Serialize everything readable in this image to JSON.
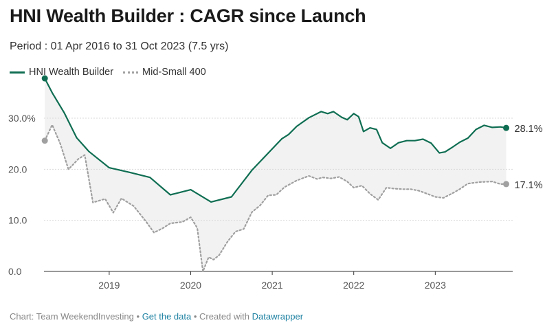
{
  "title": "HNI Wealth Builder : CAGR since Launch",
  "subtitle": "Period : 01 Apr 2016 to 31 Oct 2023 (7.5 yrs)",
  "footer": {
    "chart_by": "Chart: Team WeekendInvesting",
    "sep1": " • ",
    "get_data": "Get the data",
    "sep2": " • Created with ",
    "datawrapper": "Datawrapper"
  },
  "colors": {
    "hni": "#0f6e52",
    "mid": "#a0a0a0",
    "band": "#f2f2f2",
    "grid": "#d9d9d9",
    "axis": "#333333"
  },
  "chart_data": {
    "type": "line",
    "title": "HNI Wealth Builder : CAGR since Launch",
    "subtitle": "Period : 01 Apr 2016 to 31 Oct 2023 (7.5 yrs)",
    "xlabel": "",
    "ylabel": "",
    "xlim": [
      2018.2,
      2023.95
    ],
    "ylim": [
      0,
      37
    ],
    "y_ticks": [
      0,
      10,
      20,
      30
    ],
    "y_tick_labels": [
      "0.0",
      "10.0",
      "20.0",
      "30.0%"
    ],
    "x_ticks": [
      2019,
      2020,
      2021,
      2022,
      2023
    ],
    "x_tick_labels": [
      "2019",
      "2020",
      "2021",
      "2022",
      "2023"
    ],
    "grid": true,
    "legend": "top-left",
    "series": [
      {
        "name": "HNI Wealth Builder",
        "style": "solid",
        "end_label": "28.1%",
        "x": [
          2018.21,
          2018.3,
          2018.45,
          2018.6,
          2018.75,
          2019.0,
          2019.25,
          2019.5,
          2019.75,
          2020.0,
          2020.25,
          2020.5,
          2020.75,
          2021.0,
          2021.12,
          2021.2,
          2021.3,
          2021.45,
          2021.6,
          2021.68,
          2021.75,
          2021.85,
          2021.92,
          2022.0,
          2022.06,
          2022.12,
          2022.2,
          2022.28,
          2022.35,
          2022.45,
          2022.55,
          2022.65,
          2022.75,
          2022.85,
          2022.95,
          2023.05,
          2023.12,
          2023.2,
          2023.3,
          2023.4,
          2023.5,
          2023.6,
          2023.7,
          2023.8,
          2023.87
        ],
        "values": [
          37.8,
          35.0,
          31.0,
          26.2,
          23.5,
          20.3,
          19.4,
          18.4,
          15.0,
          16.0,
          13.6,
          14.6,
          19.8,
          24.0,
          26.0,
          26.8,
          28.4,
          30.1,
          31.3,
          30.9,
          31.3,
          30.2,
          29.7,
          30.9,
          30.3,
          27.4,
          28.1,
          27.8,
          25.2,
          24.1,
          25.2,
          25.6,
          25.6,
          25.9,
          25.1,
          23.2,
          23.4,
          24.2,
          25.3,
          26.1,
          27.8,
          28.6,
          28.2,
          28.3,
          28.1
        ]
      },
      {
        "name": "Mid-Small 400",
        "style": "dotted",
        "end_label": "17.1%",
        "x": [
          2018.21,
          2018.3,
          2018.4,
          2018.5,
          2018.55,
          2018.62,
          2018.7,
          2018.8,
          2018.95,
          2019.05,
          2019.15,
          2019.3,
          2019.45,
          2019.55,
          2019.65,
          2019.75,
          2019.9,
          2020.0,
          2020.08,
          2020.15,
          2020.22,
          2020.28,
          2020.35,
          2020.45,
          2020.55,
          2020.65,
          2020.75,
          2020.85,
          2020.95,
          2021.05,
          2021.15,
          2021.3,
          2021.45,
          2021.55,
          2021.62,
          2021.72,
          2021.82,
          2021.92,
          2022.0,
          2022.1,
          2022.2,
          2022.3,
          2022.4,
          2022.5,
          2022.6,
          2022.7,
          2022.8,
          2022.9,
          2023.0,
          2023.1,
          2023.2,
          2023.3,
          2023.4,
          2023.55,
          2023.7,
          2023.8,
          2023.87
        ],
        "values": [
          25.6,
          28.7,
          25.0,
          20.0,
          20.8,
          22.0,
          22.8,
          13.5,
          14.2,
          11.5,
          14.3,
          12.8,
          9.8,
          7.6,
          8.4,
          9.4,
          9.7,
          10.6,
          8.5,
          0.0,
          2.8,
          2.3,
          3.2,
          5.8,
          7.8,
          8.3,
          11.6,
          12.9,
          14.9,
          15.0,
          16.5,
          17.8,
          18.7,
          18.1,
          18.4,
          18.2,
          18.5,
          17.6,
          16.4,
          16.8,
          15.2,
          14.0,
          16.4,
          16.2,
          16.1,
          16.1,
          15.8,
          15.2,
          14.6,
          14.4,
          15.2,
          16.1,
          17.2,
          17.5,
          17.6,
          17.1,
          17.1
        ]
      }
    ]
  }
}
